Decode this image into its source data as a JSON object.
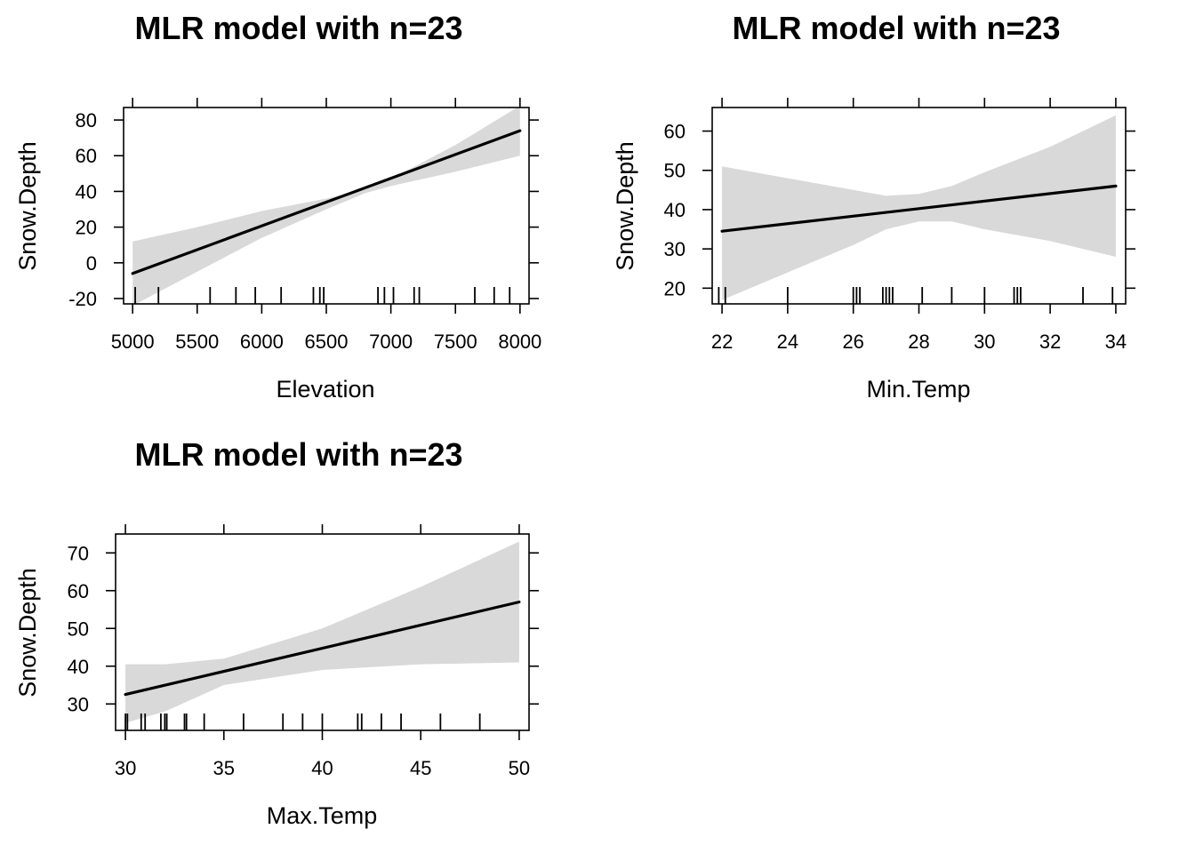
{
  "chart_data": [
    {
      "type": "line",
      "title": "MLR model with n=23",
      "xlabel": "Elevation",
      "ylabel": "Snow.Depth",
      "xlim": [
        4930,
        8070
      ],
      "ylim": [
        -23,
        87
      ],
      "xticks": [
        5000,
        5500,
        6000,
        6500,
        7000,
        7500,
        8000
      ],
      "yticks": [
        -20,
        0,
        20,
        40,
        60,
        80
      ],
      "line": {
        "x": [
          5000,
          8000
        ],
        "y": [
          -6,
          74
        ]
      },
      "band": {
        "x": [
          5000,
          5500,
          6000,
          6500,
          6800,
          7000,
          7500,
          8000
        ],
        "upper": [
          12,
          20,
          29,
          36,
          41,
          47,
          66,
          88
        ],
        "lower": [
          -24,
          -5,
          14,
          30,
          39,
          43,
          51,
          60
        ]
      },
      "rug": [
        5020,
        5200,
        5600,
        5800,
        5950,
        6150,
        6400,
        6450,
        6480,
        6900,
        6950,
        7020,
        7180,
        7220,
        7650,
        7800,
        7920
      ],
      "grid": false,
      "legend": "none",
      "colors": {
        "line": "#000000",
        "band": "#d9d9d9"
      }
    },
    {
      "type": "line",
      "title": "MLR model with n=23",
      "xlabel": "Min.Temp",
      "ylabel": "Snow.Depth",
      "xlim": [
        21.7,
        34.3
      ],
      "ylim": [
        16,
        66
      ],
      "xticks": [
        22,
        24,
        26,
        28,
        30,
        32,
        34
      ],
      "yticks": [
        20,
        30,
        40,
        50,
        60
      ],
      "line": {
        "x": [
          22,
          34
        ],
        "y": [
          34.5,
          46
        ]
      },
      "band": {
        "x": [
          22,
          24,
          26,
          27,
          28,
          29,
          30,
          32,
          34
        ],
        "upper": [
          51,
          48,
          45,
          43.5,
          44,
          46,
          49.5,
          56,
          64
        ],
        "lower": [
          17,
          24,
          31,
          35,
          37,
          37,
          35,
          32,
          28
        ]
      },
      "rug": [
        21.9,
        22.1,
        24,
        26,
        26.1,
        26.2,
        26.9,
        27,
        27.1,
        27.2,
        28.1,
        29,
        30,
        30.9,
        31,
        31.1,
        33,
        33.9
      ],
      "grid": false,
      "legend": "none",
      "colors": {
        "line": "#000000",
        "band": "#d9d9d9"
      }
    },
    {
      "type": "line",
      "title": "MLR model with n=23",
      "xlabel": "Max.Temp",
      "ylabel": "Snow.Depth",
      "xlim": [
        29.5,
        50.5
      ],
      "ylim": [
        23,
        75
      ],
      "xticks": [
        30,
        35,
        40,
        45,
        50
      ],
      "yticks": [
        30,
        40,
        50,
        60,
        70
      ],
      "line": {
        "x": [
          30,
          50
        ],
        "y": [
          32.5,
          57
        ]
      },
      "band": {
        "x": [
          30,
          32,
          35,
          40,
          45,
          50
        ],
        "upper": [
          40.5,
          40.5,
          42,
          50,
          61,
          73
        ],
        "lower": [
          25,
          28,
          35,
          39,
          40.5,
          41
        ]
      },
      "rug": [
        30,
        30.1,
        30.8,
        31,
        31.8,
        32,
        32.1,
        33,
        33.1,
        34,
        36,
        38,
        39,
        40,
        41.8,
        42,
        43,
        44,
        46,
        48
      ],
      "grid": false,
      "legend": "none",
      "colors": {
        "line": "#000000",
        "band": "#d9d9d9"
      }
    }
  ]
}
